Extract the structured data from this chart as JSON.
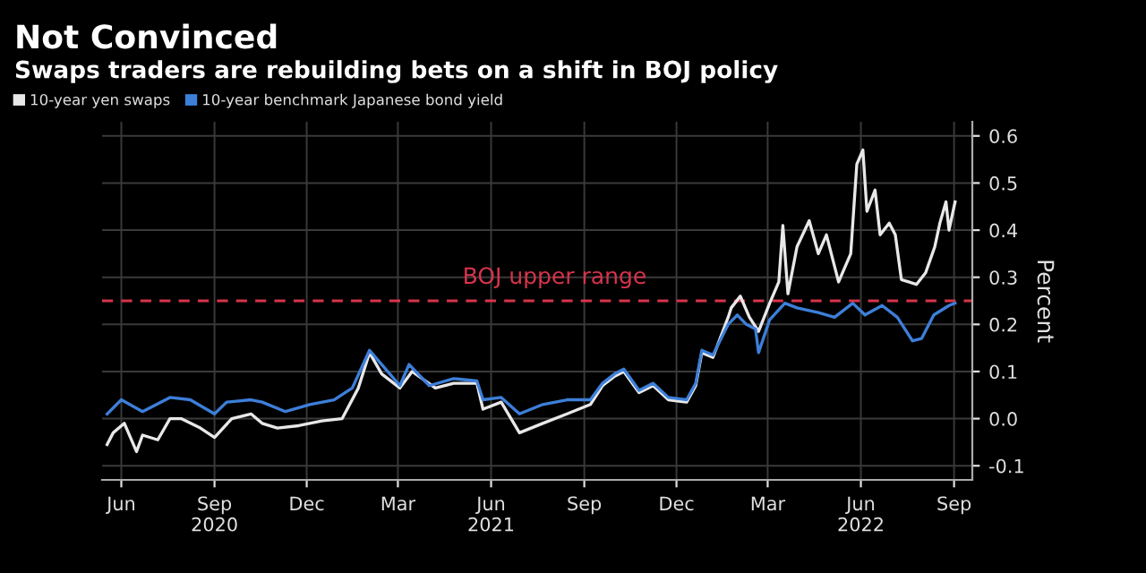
{
  "chart_data": {
    "type": "line",
    "title": "Not Convinced",
    "subtitle": "Swaps traders are rebuilding bets on a shift in BOJ policy",
    "ylabel": "Percent",
    "series": [
      {
        "name": "10-year yen swaps",
        "color": "#e8e8e8",
        "x": [
          "2020-05-18",
          "2020-05-24",
          "2020-06-04",
          "2020-06-16",
          "2020-06-22",
          "2020-07-07",
          "2020-07-19",
          "2020-07-30",
          "2020-08-18",
          "2020-09-01",
          "2020-09-18",
          "2020-10-07",
          "2020-10-18",
          "2020-11-02",
          "2020-11-23",
          "2020-12-16",
          "2021-01-05",
          "2021-01-21",
          "2021-02-01",
          "2021-02-13",
          "2021-03-03",
          "2021-03-15",
          "2021-04-07",
          "2021-04-25",
          "2021-05-18",
          "2021-05-24",
          "2021-06-11",
          "2021-06-29",
          "2021-07-22",
          "2021-08-15",
          "2021-09-07",
          "2021-09-19",
          "2021-10-01",
          "2021-10-10",
          "2021-10-25",
          "2021-11-08",
          "2021-11-23",
          "2021-12-11",
          "2021-12-20",
          "2021-12-26",
          "2022-01-06",
          "2022-01-21",
          "2022-01-24",
          "2022-02-02",
          "2022-02-11",
          "2022-02-20",
          "2022-03-03",
          "2022-03-12",
          "2022-03-16",
          "2022-03-21",
          "2022-03-30",
          "2022-04-11",
          "2022-04-20",
          "2022-04-28",
          "2022-05-10",
          "2022-05-22",
          "2022-05-28",
          "2022-06-03",
          "2022-06-07",
          "2022-06-15",
          "2022-06-20",
          "2022-06-29",
          "2022-07-05",
          "2022-07-11",
          "2022-07-26",
          "2022-08-04",
          "2022-08-13",
          "2022-08-18",
          "2022-08-24",
          "2022-08-27",
          "2022-09-02"
        ],
        "values": [
          -0.055,
          -0.03,
          -0.01,
          -0.07,
          -0.035,
          -0.045,
          0.0,
          0.0,
          -0.02,
          -0.04,
          0.0,
          0.01,
          -0.01,
          -0.02,
          -0.015,
          -0.005,
          0.0,
          0.065,
          0.14,
          0.095,
          0.065,
          0.1,
          0.065,
          0.075,
          0.075,
          0.02,
          0.035,
          -0.03,
          -0.01,
          0.01,
          0.03,
          0.07,
          0.09,
          0.1,
          0.055,
          0.07,
          0.04,
          0.035,
          0.07,
          0.14,
          0.13,
          0.215,
          0.235,
          0.26,
          0.215,
          0.185,
          0.245,
          0.29,
          0.41,
          0.265,
          0.365,
          0.42,
          0.35,
          0.39,
          0.29,
          0.35,
          0.54,
          0.57,
          0.44,
          0.485,
          0.39,
          0.415,
          0.39,
          0.295,
          0.285,
          0.31,
          0.365,
          0.415,
          0.46,
          0.4,
          0.46
        ]
      },
      {
        "name": "10-year benchmark Japanese bond yield",
        "color": "#3d7fd9",
        "x": [
          "2020-05-18",
          "2020-06-01",
          "2020-06-22",
          "2020-07-19",
          "2020-08-08",
          "2020-09-01",
          "2020-09-13",
          "2020-10-07",
          "2020-10-18",
          "2020-11-10",
          "2020-12-04",
          "2020-12-28",
          "2021-01-15",
          "2021-02-01",
          "2021-02-13",
          "2021-03-03",
          "2021-03-12",
          "2021-04-01",
          "2021-04-25",
          "2021-05-18",
          "2021-05-24",
          "2021-06-11",
          "2021-06-29",
          "2021-07-22",
          "2021-08-15",
          "2021-09-07",
          "2021-09-19",
          "2021-10-01",
          "2021-10-10",
          "2021-10-25",
          "2021-11-08",
          "2021-11-23",
          "2021-12-11",
          "2021-12-20",
          "2021-12-26",
          "2022-01-06",
          "2022-01-21",
          "2022-01-30",
          "2022-02-08",
          "2022-02-17",
          "2022-02-20",
          "2022-03-03",
          "2022-03-18",
          "2022-03-30",
          "2022-04-20",
          "2022-05-06",
          "2022-05-24",
          "2022-06-05",
          "2022-06-22",
          "2022-07-07",
          "2022-07-22",
          "2022-07-31",
          "2022-08-12",
          "2022-08-27",
          "2022-09-02"
        ],
        "values": [
          0.01,
          0.04,
          0.015,
          0.045,
          0.04,
          0.01,
          0.035,
          0.04,
          0.035,
          0.015,
          0.03,
          0.04,
          0.065,
          0.145,
          0.115,
          0.07,
          0.115,
          0.07,
          0.085,
          0.08,
          0.04,
          0.045,
          0.01,
          0.03,
          0.04,
          0.04,
          0.075,
          0.095,
          0.105,
          0.06,
          0.075,
          0.045,
          0.04,
          0.075,
          0.145,
          0.135,
          0.2,
          0.22,
          0.2,
          0.19,
          0.14,
          0.21,
          0.245,
          0.235,
          0.225,
          0.215,
          0.245,
          0.22,
          0.24,
          0.215,
          0.165,
          0.17,
          0.22,
          0.24,
          0.245
        ]
      }
    ],
    "xlim": [
      "2020-05-13",
      "2022-09-19"
    ],
    "xticks": [
      {
        "value": "2020-06-01",
        "label": "Jun"
      },
      {
        "value": "2020-09-01",
        "label": "Sep\n2020"
      },
      {
        "value": "2020-12-01",
        "label": "Dec"
      },
      {
        "value": "2021-03-01",
        "label": "Mar"
      },
      {
        "value": "2021-06-01",
        "label": "Jun\n2021"
      },
      {
        "value": "2021-09-01",
        "label": "Sep"
      },
      {
        "value": "2021-12-01",
        "label": "Dec"
      },
      {
        "value": "2022-03-01",
        "label": "Mar"
      },
      {
        "value": "2022-06-01",
        "label": "Jun\n2022"
      },
      {
        "value": "2022-09-01",
        "label": "Sep"
      }
    ],
    "ylim": [
      -0.13,
      0.63
    ],
    "yticks": [
      {
        "value": -0.1,
        "label": "-0.1"
      },
      {
        "value": 0.0,
        "label": "0.0"
      },
      {
        "value": 0.1,
        "label": "0.1"
      },
      {
        "value": 0.2,
        "label": "0.2"
      },
      {
        "value": 0.3,
        "label": "0.3"
      },
      {
        "value": 0.4,
        "label": "0.4"
      },
      {
        "value": 0.5,
        "label": "0.5"
      },
      {
        "value": 0.6,
        "label": "0.6"
      }
    ],
    "ref_lines": [
      {
        "axis": "y",
        "value": 0.25,
        "label": "BOJ upper range",
        "color": "#d8344c",
        "line_style": "dashed"
      }
    ],
    "grid": true,
    "legend": "top left",
    "marker": "none",
    "line_style": "solid"
  }
}
